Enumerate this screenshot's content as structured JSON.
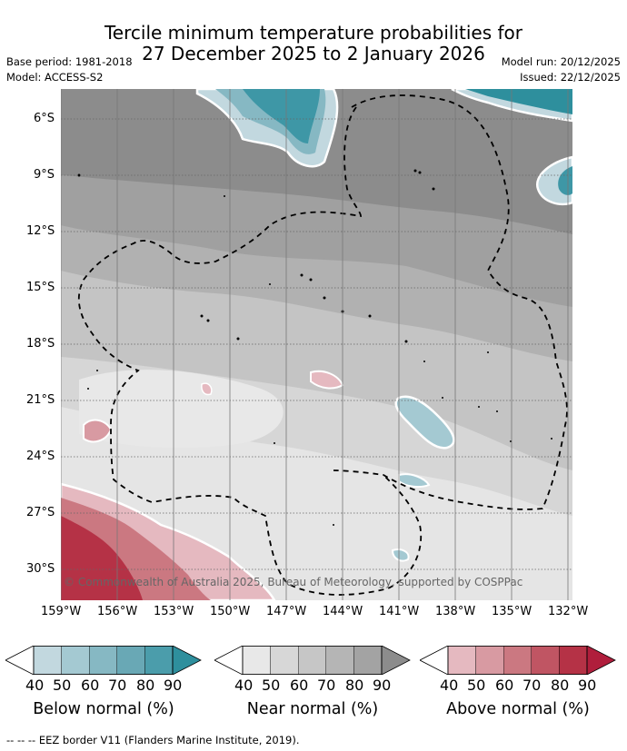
{
  "title": {
    "line1": "Tercile minimum temperature probabilities for",
    "line2": "27 December 2025 to 2 January 2026"
  },
  "meta": {
    "base_period": "Base period: 1981-2018",
    "model": "Model: ACCESS-S2",
    "model_run": "Model run: 20/12/2025",
    "issued": "Issued: 22/12/2025"
  },
  "map": {
    "lat_ticks": [
      "6°S",
      "9°S",
      "12°S",
      "15°S",
      "18°S",
      "21°S",
      "24°S",
      "27°S",
      "30°S"
    ],
    "lon_ticks": [
      "159°W",
      "156°W",
      "153°W",
      "150°W",
      "147°W",
      "144°W",
      "141°W",
      "138°W",
      "135°W",
      "132°W"
    ],
    "copyright": "© Commonwealth of Australia 2025, Bureau of Meteorology, supported by COSPPac"
  },
  "legend": {
    "levels": [
      "40",
      "50",
      "60",
      "70",
      "80",
      "90"
    ],
    "below": {
      "label": "Below normal (%)",
      "colors": [
        "#c2d8df",
        "#a4c9d2",
        "#86b8c3",
        "#69a8b5",
        "#4b9dab",
        "#2e8f9d"
      ]
    },
    "near": {
      "label": "Near normal (%)",
      "colors": [
        "#e8e8e8",
        "#d7d7d7",
        "#c6c6c6",
        "#b5b5b5",
        "#a3a3a3",
        "#8c8c8c"
      ]
    },
    "above": {
      "label": "Above normal (%)",
      "colors": [
        "#e5b9c0",
        "#d89aa2",
        "#cb7881",
        "#c05563",
        "#b53246",
        "#b01e3c"
      ]
    }
  },
  "footer": "--  --  -- EEZ border V11 (Flanders Marine Institute, 2019)."
}
